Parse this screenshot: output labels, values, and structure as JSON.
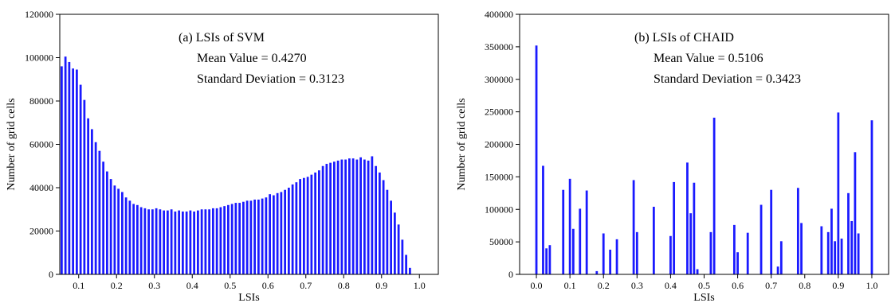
{
  "chart_data": [
    {
      "type": "bar",
      "annotations": [
        "(a) LSIs of SVM",
        "Mean Value = 0.4270",
        "Standard Deviation = 0.3123"
      ],
      "xlabel": "LSIs",
      "ylabel": "Number of grid cells",
      "xlim": [
        0.05,
        1.05
      ],
      "ylim": [
        0,
        120000
      ],
      "x_ticks": [
        "0.1",
        "0.2",
        "0.3",
        "0.4",
        "0.5",
        "0.6",
        "0.7",
        "0.8",
        "0.9",
        "1.0"
      ],
      "y_ticks": [
        "0",
        "20000",
        "40000",
        "60000",
        "80000",
        "100000",
        "120000"
      ],
      "bar_color": "#1a1aff",
      "bar_width": 0.0058,
      "x": [
        0.055,
        0.065,
        0.075,
        0.085,
        0.095,
        0.105,
        0.115,
        0.125,
        0.135,
        0.145,
        0.155,
        0.165,
        0.175,
        0.185,
        0.195,
        0.205,
        0.215,
        0.225,
        0.235,
        0.245,
        0.255,
        0.265,
        0.275,
        0.285,
        0.295,
        0.305,
        0.315,
        0.325,
        0.335,
        0.345,
        0.355,
        0.365,
        0.375,
        0.385,
        0.395,
        0.405,
        0.415,
        0.425,
        0.435,
        0.445,
        0.455,
        0.465,
        0.475,
        0.485,
        0.495,
        0.505,
        0.515,
        0.525,
        0.535,
        0.545,
        0.555,
        0.565,
        0.575,
        0.585,
        0.595,
        0.605,
        0.615,
        0.625,
        0.635,
        0.645,
        0.655,
        0.665,
        0.675,
        0.685,
        0.695,
        0.705,
        0.715,
        0.725,
        0.735,
        0.745,
        0.755,
        0.765,
        0.775,
        0.785,
        0.795,
        0.805,
        0.815,
        0.825,
        0.835,
        0.845,
        0.855,
        0.865,
        0.875,
        0.885,
        0.895,
        0.905,
        0.915,
        0.925,
        0.935,
        0.945,
        0.955,
        0.965,
        0.975
      ],
      "values": [
        96000,
        100500,
        98000,
        95000,
        94500,
        87500,
        80500,
        72000,
        67000,
        61000,
        57000,
        52000,
        47500,
        44000,
        41000,
        39500,
        38000,
        35500,
        34000,
        32500,
        32000,
        31000,
        30500,
        30000,
        30000,
        30500,
        30000,
        29500,
        29500,
        30000,
        29000,
        29500,
        29000,
        29000,
        29500,
        29000,
        29500,
        30000,
        30000,
        30000,
        30500,
        30500,
        31000,
        31500,
        32000,
        32500,
        33000,
        33000,
        33500,
        34000,
        34000,
        34500,
        34500,
        35000,
        35500,
        37000,
        36500,
        37500,
        38000,
        39000,
        40000,
        41500,
        42500,
        44000,
        44500,
        45000,
        46000,
        47000,
        48000,
        50000,
        51000,
        51500,
        52000,
        52500,
        53000,
        53000,
        53500,
        53500,
        53000,
        54000,
        53000,
        52500,
        54500,
        50000,
        47000,
        43500,
        39000,
        34000,
        28500,
        23000,
        16000,
        9000,
        3000
      ]
    },
    {
      "type": "bar",
      "annotations": [
        "(b) LSIs of CHAID",
        "Mean Value = 0.5106",
        "Standard Deviation = 0.3423"
      ],
      "xlabel": "LSIs",
      "ylabel": "Number of grid cells",
      "xlim": [
        -0.05,
        1.05
      ],
      "ylim": [
        0,
        400000
      ],
      "x_ticks": [
        "0.0",
        "0.1",
        "0.2",
        "0.3",
        "0.4",
        "0.5",
        "0.6",
        "0.7",
        "0.8",
        "0.9",
        "1.0"
      ],
      "y_ticks": [
        "0",
        "50000",
        "100000",
        "150000",
        "200000",
        "250000",
        "300000",
        "350000",
        "400000"
      ],
      "bar_color": "#1a1aff",
      "bar_width": 0.0066,
      "x": [
        0.0,
        0.02,
        0.03,
        0.04,
        0.08,
        0.1,
        0.11,
        0.13,
        0.15,
        0.18,
        0.2,
        0.22,
        0.24,
        0.29,
        0.3,
        0.35,
        0.4,
        0.41,
        0.45,
        0.46,
        0.47,
        0.48,
        0.52,
        0.53,
        0.59,
        0.6,
        0.63,
        0.67,
        0.7,
        0.72,
        0.73,
        0.78,
        0.79,
        0.85,
        0.87,
        0.88,
        0.89,
        0.9,
        0.91,
        0.93,
        0.94,
        0.95,
        0.96,
        1.0
      ],
      "values": [
        352000,
        167000,
        40000,
        45000,
        130000,
        147000,
        70000,
        101000,
        129000,
        5000,
        63000,
        38000,
        54000,
        145000,
        65000,
        104000,
        59000,
        142000,
        172000,
        94000,
        141000,
        8000,
        65000,
        241000,
        76000,
        34000,
        64000,
        107000,
        130000,
        12000,
        51000,
        133000,
        79000,
        74000,
        65000,
        101000,
        51000,
        249000,
        55000,
        125000,
        82000,
        188000,
        63000,
        237000
      ]
    }
  ]
}
